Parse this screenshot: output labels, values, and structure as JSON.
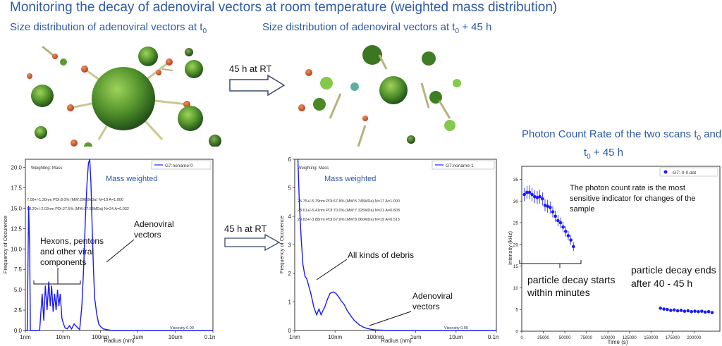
{
  "header": {
    "title": "Monitoring the decay of adenoviral vectors at room temperature (weighted mass distribution)",
    "sub_left_main": "Size distribution of adenoviral vectors at t",
    "sub_left_sub": "0",
    "sub_mid_main": "Size distribution of adenoviral vectors at t",
    "sub_mid_sub": "0",
    "sub_mid_suffix": " + 45 h",
    "sub_right_line1": "Photon Count Rate of the two scans t",
    "sub_right_sub1": "0",
    "sub_right_and": " and",
    "sub_right_line2a": "t",
    "sub_right_sub2": "0",
    "sub_right_line2b": " + 45 h"
  },
  "arrows": {
    "top_label": "45 h at RT",
    "bottom_label": "45 h at RT"
  },
  "colors": {
    "title": "#2e5aa8",
    "series": "#1a1aff",
    "virus_green": "#4f8f2a",
    "virus_orange": "#d2562a"
  },
  "chart_data": [
    {
      "type": "line",
      "xscale": "log",
      "xlabel": "Radius (nm)",
      "ylabel": "Frequency of Occurence",
      "ylim": [
        0,
        21
      ],
      "yticks": [
        "0.0",
        "2.5",
        "5.0",
        "7.5",
        "10.0",
        "12.5",
        "15.0",
        "17.5",
        "20.0"
      ],
      "xticks": [
        "1nm",
        "10nm",
        "100nm",
        "1um",
        "10um",
        "0.1mm"
      ],
      "legend": "G7:noname-0",
      "weighting": "Weighting: Mass",
      "stats": [
        "7.09+/-1.20nm PDI:8.0% (MW:296.8kDa) N=10 A=1.000",
        "58.29+/-2.02nm PDI:27.5% (MW:37.63MDa) N=24 A=0.032"
      ],
      "viscosity": "Viscosity 0.90",
      "inner_label": "Mass weighted",
      "annotations": [
        "Hexons, pentons",
        "and other viral",
        "components",
        "Adenoviral",
        "vectors"
      ],
      "series": [
        {
          "name": "G7:noname-0",
          "x": [
            1,
            1.12,
            1.22,
            1.3,
            1.36,
            1.45,
            1.6,
            1.8,
            2.0,
            2.4,
            2.8,
            3.1,
            3.4,
            3.8,
            4.2,
            4.6,
            5.0,
            5.5,
            6.0,
            6.6,
            7.2,
            7.8,
            8.5,
            9.4,
            10.4,
            11.5,
            13,
            15,
            17,
            20,
            24,
            28,
            32,
            36,
            40,
            44,
            48,
            52,
            56,
            60,
            65,
            70,
            80,
            90,
            100,
            120,
            150,
            200,
            300,
            500,
            1000,
            100000
          ],
          "y": [
            0,
            0,
            15.3,
            10,
            0,
            0,
            0,
            0,
            0,
            0,
            4.5,
            1.2,
            5.5,
            2.5,
            6,
            3,
            5.5,
            2.3,
            4.5,
            2.5,
            5,
            3,
            4.5,
            1.5,
            0.8,
            0.3,
            0.2,
            0.6,
            0.2,
            0.8,
            0.4,
            0.1,
            3,
            8,
            14,
            18,
            20.5,
            21,
            18,
            13,
            8,
            4,
            2,
            0.8,
            0.5,
            0.2,
            0.1,
            0,
            0,
            0,
            0,
            0
          ]
        }
      ]
    },
    {
      "type": "line",
      "xscale": "log",
      "xlabel": "Radius (nm)",
      "ylabel": "Frequency of Occurence",
      "ylim": [
        0,
        6
      ],
      "yticks": [
        "0",
        "1",
        "2",
        "3",
        "4",
        "5",
        "6"
      ],
      "xticks": [
        "1nm",
        "10nm",
        "100nm",
        "1um",
        "10um",
        "0.1mm"
      ],
      "legend": "G7:noname-1",
      "weighting": "Weighting: Mass",
      "stats": [
        "25.75+/-5.79nm PDI:67.8% (MW:5.745MDa) N=17 A=1.000",
        "28.61+/-5.41nm PDI:70.0% (MW:7.325MDa) N=21 A=0.808",
        "29.83+/-3.88nm PDI:67.9% (MW:8.060MDa) N=19 A=0.515"
      ],
      "viscosity": "Viscosity 0.90",
      "inner_label": "Mass weighted",
      "annotations": [
        "All kinds of debris",
        "Adenoviral",
        "vectors"
      ],
      "series": [
        {
          "name": "G7:noname-1",
          "x": [
            1.2,
            1.3,
            1.45,
            1.6,
            1.8,
            2.0,
            2.5,
            3.0,
            3.5,
            4.0,
            4.5,
            5.0,
            5.5,
            6.5,
            7.5,
            9,
            10.5,
            12,
            14,
            17,
            20,
            25,
            30,
            40,
            50,
            60,
            80,
            100,
            150,
            200,
            400,
            1000,
            100000
          ],
          "y": [
            6,
            4.5,
            3.2,
            2.3,
            1.9,
            1.8,
            1.3,
            0.8,
            0.55,
            0.75,
            0.55,
            0.7,
            0.8,
            1.1,
            1.3,
            1.35,
            1.3,
            1.2,
            1.05,
            0.9,
            0.7,
            0.5,
            0.35,
            0.2,
            0.12,
            0.08,
            0.04,
            0.02,
            0.01,
            0,
            0,
            0,
            0
          ]
        }
      ]
    },
    {
      "type": "scatter",
      "xlabel": "Time (s)",
      "ylabel": "Intensity (kHz)",
      "ylim": [
        0,
        38
      ],
      "xlim": [
        0,
        230000
      ],
      "yticks": [
        "0",
        "5",
        "10",
        "15",
        "20",
        "25",
        "30",
        "35"
      ],
      "xticks": [
        "0",
        "25000",
        "50000",
        "75000",
        "100000",
        "125000",
        "150000",
        "175000",
        "200000"
      ],
      "legend": "-G7:-0-0.dat",
      "annotations": {
        "rate_note": "The photon count rate is the most sensitive indicator for changes of the sample",
        "start_note_1": "particle decay starts",
        "start_note_2": "within minutes",
        "end_note_1": "particle decay ends",
        "end_note_2": "after 40 - 45 h"
      },
      "series": [
        {
          "name": "-G7:-0-0.dat",
          "x": [
            3000,
            6000,
            9000,
            12000,
            15000,
            18000,
            21000,
            24000,
            27000,
            30000,
            33000,
            36000,
            39000,
            42000,
            45000,
            48000,
            51000,
            54000,
            57000,
            60000,
            161000,
            165000,
            169000,
            173000,
            177000,
            181000,
            185000,
            189000,
            193000,
            197000,
            201000,
            205000,
            209000,
            213000,
            217000,
            221000
          ],
          "y": [
            31.5,
            32,
            32,
            31.5,
            31,
            30.8,
            31,
            30.5,
            29,
            28.8,
            28.5,
            27.5,
            26.5,
            25.5,
            25,
            24,
            23,
            22,
            21,
            19.5,
            5.3,
            5.1,
            5.0,
            4.8,
            4.9,
            4.7,
            4.8,
            4.6,
            4.7,
            4.5,
            4.6,
            4.5,
            4.6,
            4.4,
            4.5,
            4.3
          ],
          "err": [
            1.5,
            1.5,
            1.6,
            1.6,
            1.5,
            1.5,
            1.6,
            1.5,
            1.4,
            1.5,
            1.4,
            1.3,
            1.3,
            1.3,
            1.2,
            1.2,
            1.2,
            1.1,
            1.1,
            1.0,
            0.3,
            0.3,
            0.3,
            0.3,
            0.3,
            0.3,
            0.3,
            0.3,
            0.3,
            0.3,
            0.3,
            0.3,
            0.3,
            0.3,
            0.3,
            0.3
          ]
        }
      ]
    }
  ]
}
